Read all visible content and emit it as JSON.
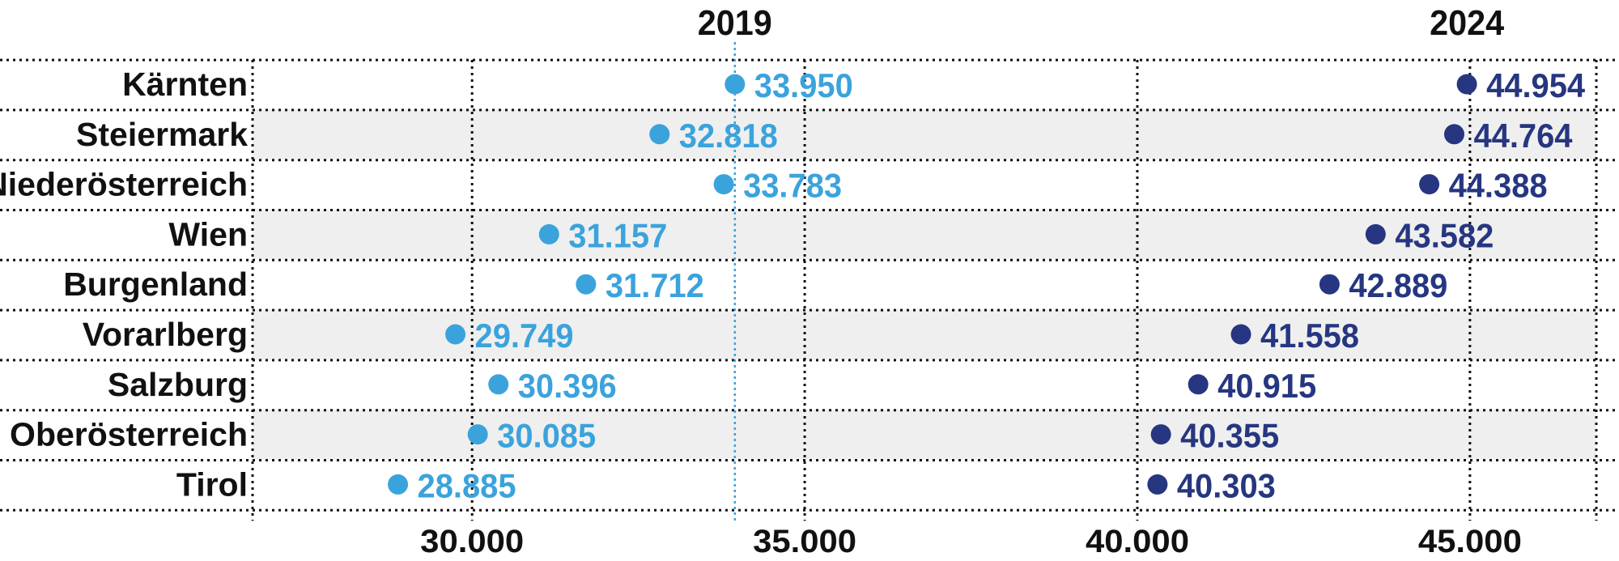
{
  "chart_data": {
    "type": "scatter",
    "series_labels": [
      "2019",
      "2024"
    ],
    "categories": [
      "Kärnten",
      "Steiermark",
      "Niederösterreich",
      "Wien",
      "Burgenland",
      "Vorarlberg",
      "Salzburg",
      "Oberösterreich",
      "Tirol"
    ],
    "series": [
      {
        "name": "2019",
        "color": "#3ba3dc",
        "values": [
          33950,
          32818,
          33783,
          31157,
          31712,
          29749,
          30396,
          30085,
          28885
        ],
        "labels": [
          "33.950",
          "32.818",
          "33.783",
          "31.157",
          "31.712",
          "29.749",
          "30.396",
          "30.085",
          "28.885"
        ]
      },
      {
        "name": "2024",
        "color": "#263680",
        "values": [
          44954,
          44764,
          44388,
          43582,
          42889,
          41558,
          40915,
          40355,
          40303
        ],
        "labels": [
          "44.954",
          "44.764",
          "44.388",
          "43.582",
          "42.889",
          "41.558",
          "40.915",
          "40.355",
          "40.303"
        ]
      }
    ],
    "x_ticks": [
      30000,
      35000,
      40000,
      45000
    ],
    "x_tick_labels": [
      "30.000",
      "35.000",
      "40.000",
      "45.000"
    ],
    "xlim": [
      26700,
      46900
    ],
    "reference_line": 33950,
    "grid": true,
    "row_shading": "alternating"
  }
}
